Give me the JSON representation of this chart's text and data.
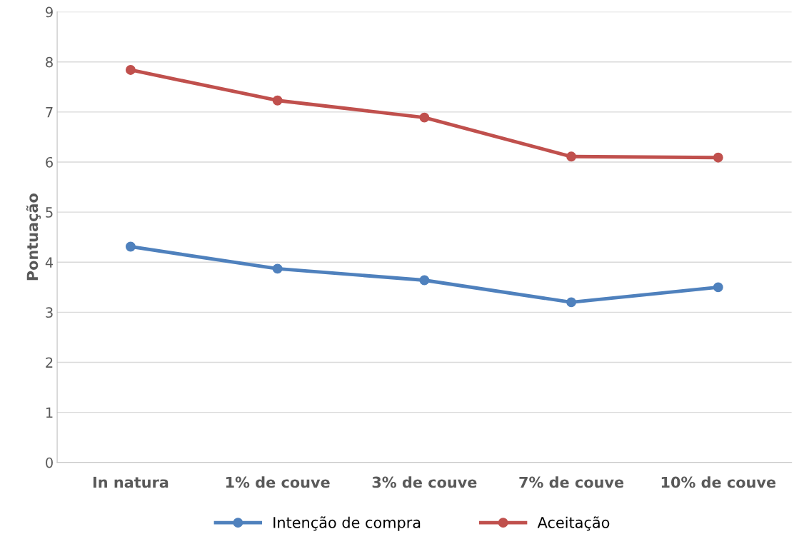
{
  "chart_data": {
    "type": "line",
    "ylabel": "Pontuação",
    "categories": [
      "In natura",
      "1% de couve",
      "3% de couve",
      "7% de couve",
      "10% de couve"
    ],
    "series": [
      {
        "name": "Intenção de compra",
        "color": "#4f81bd",
        "values": [
          4.31,
          3.87,
          3.64,
          3.2,
          3.5
        ]
      },
      {
        "name": "Aceitação",
        "color": "#c0504d",
        "values": [
          7.84,
          7.23,
          6.89,
          6.11,
          6.09
        ]
      }
    ],
    "ylim": [
      0,
      9
    ],
    "yticks": [
      0,
      1,
      2,
      3,
      4,
      5,
      6,
      7,
      8,
      9
    ],
    "grid": "y",
    "legend": "bottom",
    "marker": "circle",
    "line_style": "solid"
  }
}
